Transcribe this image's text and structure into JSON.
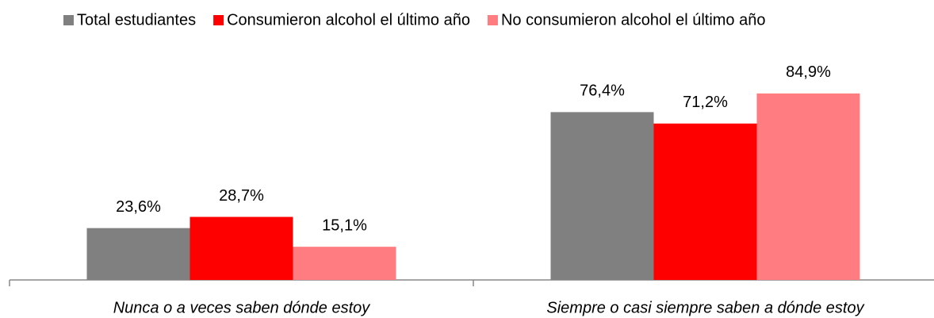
{
  "chart_data": {
    "type": "bar",
    "categories": [
      "Nunca o a veces saben dónde estoy",
      "Siempre o casi siempre saben a dónde estoy"
    ],
    "series": [
      {
        "name": "Total estudiantes",
        "color": "#808080",
        "values": [
          23.6,
          76.4
        ],
        "value_labels": [
          "23,6%",
          "76,4%"
        ]
      },
      {
        "name": "Consumieron alcohol el último año",
        "color": "#ff0000",
        "values": [
          28.7,
          71.2
        ],
        "value_labels": [
          "28,7%",
          "71,2%"
        ]
      },
      {
        "name": "No consumieron alcohol el último año",
        "color": "#ff7c80",
        "values": [
          15.1,
          84.9
        ],
        "value_labels": [
          "15,1%",
          "84,9%"
        ]
      }
    ],
    "ylim": [
      0,
      100
    ],
    "legend": "top"
  }
}
